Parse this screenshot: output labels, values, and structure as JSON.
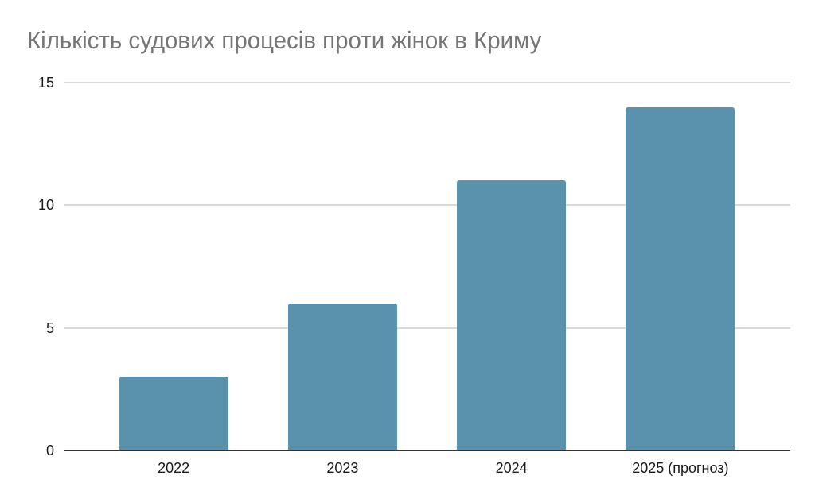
{
  "chart_data": {
    "type": "bar",
    "title": "Кількість судових процесів проти жінок в Криму",
    "categories": [
      "2022",
      "2023",
      "2024",
      "2025 (прогноз)"
    ],
    "values": [
      3,
      6,
      11,
      14
    ],
    "xlabel": "",
    "ylabel": "",
    "ylim": [
      0,
      15
    ],
    "yticks": [
      0,
      5,
      10,
      15
    ],
    "grid": true,
    "legend_position": "none",
    "colors": {
      "bar": "#5a91ad",
      "title": "#757575",
      "gridline": "#d9d9d9",
      "axis_line": "#333333",
      "tick_label": "#1a1a1a",
      "background": "#ffffff"
    }
  }
}
